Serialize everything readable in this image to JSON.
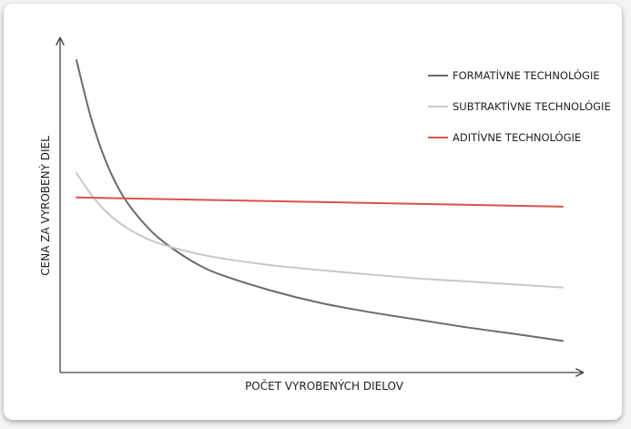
{
  "chart_data": {
    "type": "line",
    "title": "",
    "xlabel": "POČET VYROBENÝCH DIELOV",
    "ylabel": "CENA ZA VYROBENÝ DIEL",
    "x_ticks": false,
    "y_ticks": false,
    "grid": false,
    "legend_position": "top-right",
    "xlim": [
      0,
      100
    ],
    "ylim": [
      0,
      100
    ],
    "series": [
      {
        "name": "FORMATÍVNE TECHNOLÓGIE",
        "color": "#6b6b6b",
        "x": [
          0,
          3,
          6,
          9,
          12,
          16,
          20,
          25,
          30,
          40,
          50,
          60,
          70,
          80,
          90,
          100
        ],
        "y": [
          97,
          78,
          64,
          54,
          47,
          40,
          35,
          30,
          26.5,
          21.5,
          17.5,
          14.5,
          12,
          9.5,
          7.3,
          5
        ]
      },
      {
        "name": "SUBTRAKTÍVNE TECHNOLÓGIE",
        "color": "#c8c8c8",
        "x": [
          0,
          3,
          6,
          9,
          12,
          16,
          20,
          25,
          30,
          40,
          50,
          60,
          70,
          80,
          90,
          100
        ],
        "y": [
          60,
          53,
          47.5,
          43.5,
          40.5,
          37.5,
          35.5,
          33.5,
          32,
          29.8,
          28.2,
          26.8,
          25.5,
          24.5,
          23.5,
          22.5
        ]
      },
      {
        "name": "ADITÍVNE TECHNOLÓGIE",
        "color": "#d9534f",
        "x": [
          0,
          100
        ],
        "y": [
          52,
          49
        ]
      }
    ]
  }
}
